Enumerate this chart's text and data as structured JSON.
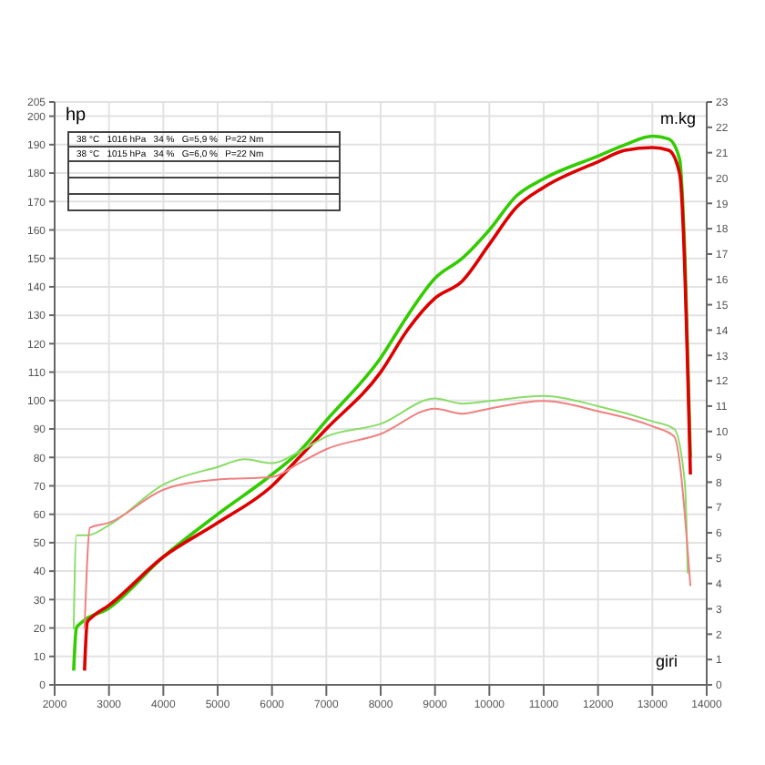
{
  "chart_data": {
    "type": "line",
    "xlabel": "giri",
    "ylabel": "hp",
    "y2label": "m.kg",
    "annotations": [
      "38 °C   1016 hPa   34 %   G=5,9 %   P=22 Nm",
      "38 °C   1015 hPa   34 %   G=6,0 %   P=22 Nm"
    ],
    "xlim": [
      2000,
      14000
    ],
    "xticks": [
      2000,
      3000,
      4000,
      5000,
      6000,
      7000,
      8000,
      9000,
      10000,
      11000,
      12000,
      13000,
      14000
    ],
    "ylim": [
      0,
      205
    ],
    "yticks": [
      0,
      10,
      20,
      30,
      40,
      50,
      60,
      70,
      80,
      90,
      100,
      110,
      120,
      130,
      140,
      150,
      160,
      170,
      180,
      190,
      200,
      205
    ],
    "y2lim": [
      0,
      23
    ],
    "y2ticks": [
      0,
      1,
      2,
      3,
      4,
      5,
      6,
      7,
      8,
      9,
      10,
      11,
      12,
      13,
      14,
      15,
      16,
      17,
      18,
      19,
      20,
      21,
      22,
      23
    ],
    "grid": true,
    "legend": false,
    "marker": "none",
    "line_style": "solid",
    "series": [
      {
        "color": "#33cc00",
        "x": [
          2350,
          2400,
          2500,
          3000,
          4000,
          5000,
          6000,
          6500,
          7000,
          8000,
          8500,
          9000,
          9500,
          10000,
          10500,
          11000,
          12000,
          12500,
          13000,
          13300,
          13500,
          13600,
          13700
        ],
        "values": [
          5,
          20,
          22,
          27,
          45,
          60,
          74,
          82,
          93,
          115,
          130,
          143,
          150,
          160,
          172,
          178,
          186,
          190,
          193,
          192,
          185,
          150,
          80
        ]
      },
      {
        "color": "#dd0000",
        "x": [
          2550,
          2600,
          2700,
          3000,
          4000,
          5000,
          6000,
          6500,
          7000,
          8000,
          8500,
          9000,
          9500,
          10000,
          10500,
          11000,
          12000,
          12500,
          13000,
          13300,
          13500,
          13700
        ],
        "values": [
          5,
          22,
          24,
          28,
          45,
          57,
          70,
          80,
          90,
          110,
          125,
          136,
          142,
          155,
          168,
          175,
          184,
          188,
          189,
          188,
          180,
          74
        ]
      },
      {
        "color": "#88dd66",
        "axis": "y2",
        "x": [
          2350,
          2400,
          2600,
          3000,
          4000,
          5000,
          5500,
          6000,
          6500,
          7000,
          8000,
          9000,
          9500,
          10000,
          11000,
          12000,
          13000,
          13400,
          13600,
          13650
        ],
        "values": [
          2.2,
          5.9,
          5.9,
          6.3,
          7.9,
          8.6,
          8.9,
          8.75,
          9.2,
          9.8,
          10.3,
          11.3,
          11.1,
          11.2,
          11.4,
          11.0,
          10.4,
          10.1,
          7.9,
          4.4
        ]
      },
      {
        "color": "#f08080",
        "axis": "y2",
        "x": [
          2550,
          2650,
          3000,
          4000,
          5000,
          6000,
          6500,
          7000,
          8000,
          9000,
          9500,
          10000,
          11000,
          12000,
          13000,
          13400,
          13700
        ],
        "values": [
          2.2,
          6.2,
          6.4,
          7.7,
          8.1,
          8.2,
          8.75,
          9.3,
          9.9,
          10.9,
          10.7,
          10.9,
          11.2,
          10.8,
          10.2,
          9.8,
          3.9
        ]
      }
    ]
  }
}
